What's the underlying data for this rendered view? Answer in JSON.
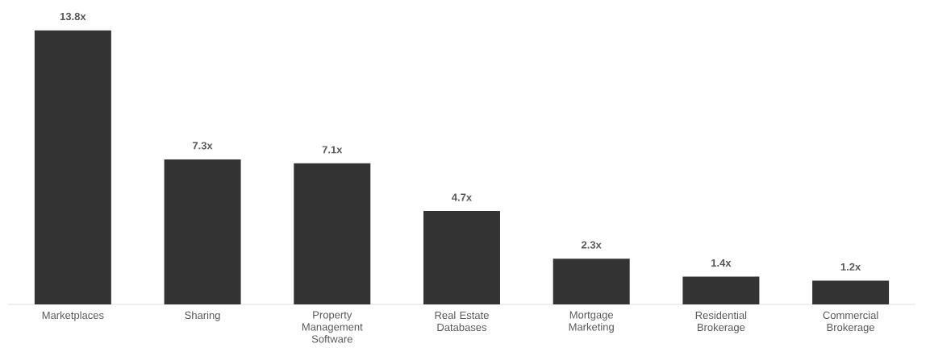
{
  "chart_data": {
    "type": "bar",
    "categories": [
      "Marketplaces",
      "Sharing",
      "Property Management Software",
      "Real Estate Databases",
      "Mortgage Marketing",
      "Residential Brokerage",
      "Commercial Brokerage"
    ],
    "values": [
      13.8,
      7.3,
      7.1,
      4.7,
      2.3,
      1.4,
      1.2
    ],
    "value_labels": [
      "13.8x",
      "7.3x",
      "7.1x",
      "4.7x",
      "2.3x",
      "1.4x",
      "1.2x"
    ],
    "color": "#333333"
  }
}
